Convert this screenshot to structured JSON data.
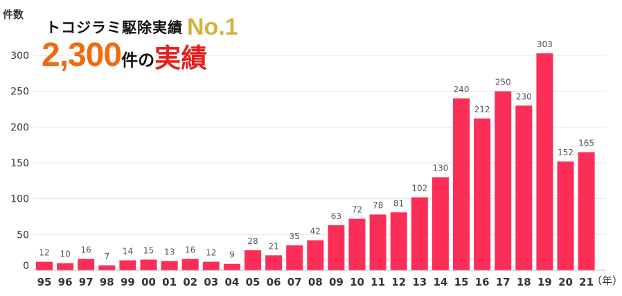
{
  "headline": {
    "line1_text": "トコジラミ駆除実績",
    "line1_badge": "No.1",
    "line2_number": "2,300",
    "line2_mid": "件の",
    "line2_tail": "実績"
  },
  "colors": {
    "bar": "#fb2e58",
    "grid": "#e6e6e6",
    "axis_text": "#333333",
    "value_text": "#555555"
  },
  "chart_data": {
    "type": "bar",
    "title": "",
    "ylabel": "件数",
    "xlabel": "（年）",
    "ylim": [
      0,
      300
    ],
    "yticks": [
      0,
      50,
      100,
      150,
      200,
      250,
      300
    ],
    "grid": true,
    "categories": [
      "95",
      "96",
      "97",
      "98",
      "99",
      "00",
      "01",
      "02",
      "03",
      "04",
      "05",
      "06",
      "07",
      "08",
      "09",
      "10",
      "11",
      "12",
      "13",
      "14",
      "15",
      "16",
      "17",
      "18",
      "19",
      "20",
      "21"
    ],
    "values": [
      12,
      10,
      16,
      7,
      14,
      15,
      13,
      16,
      12,
      9,
      28,
      21,
      35,
      42,
      63,
      72,
      78,
      81,
      102,
      130,
      240,
      212,
      250,
      230,
      303,
      152,
      165
    ]
  }
}
